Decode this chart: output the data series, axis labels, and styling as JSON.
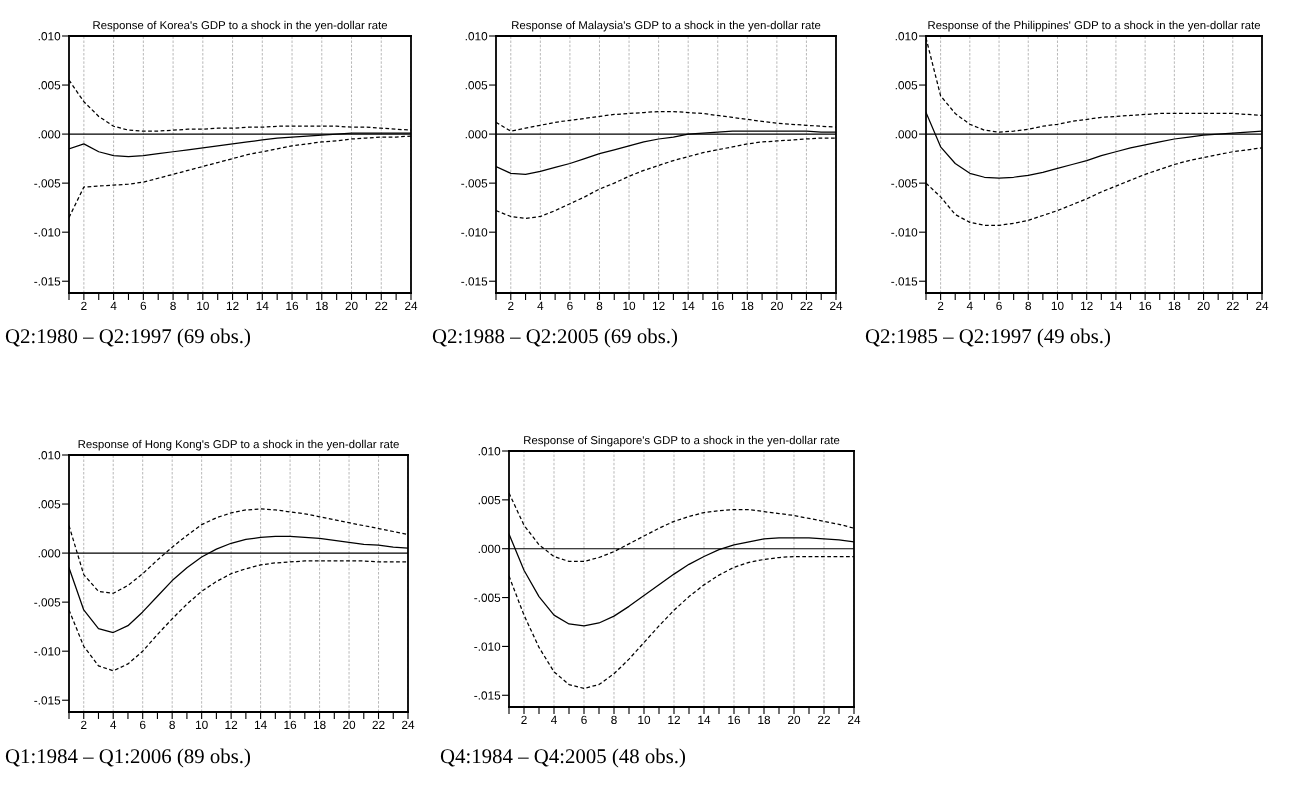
{
  "chart_data": [
    {
      "type": "line",
      "title": "Response of Korea's GDP to a shock in the yen-dollar rate",
      "annotations": [
        "Q2:1980 – Q2:1997 (69 obs.)"
      ],
      "x": [
        1,
        2,
        3,
        4,
        5,
        6,
        7,
        8,
        9,
        10,
        11,
        12,
        13,
        14,
        15,
        16,
        17,
        18,
        19,
        20,
        21,
        22,
        23,
        24
      ],
      "series": [
        {
          "color": "#000000",
          "line_style": "solid",
          "values": [
            -0.0015,
            -0.001,
            -0.0018,
            -0.0022,
            -0.0023,
            -0.0022,
            -0.002,
            -0.0018,
            -0.0016,
            -0.0014,
            -0.0012,
            -0.001,
            -0.0008,
            -0.0006,
            -0.0004,
            -0.0003,
            -0.0002,
            -0.0001,
            0,
            0.0001,
            0.0001,
            0.0001,
            0.0001,
            0.0001
          ]
        },
        {
          "color": "#000000",
          "line_style": "dashed",
          "values": [
            0.0055,
            0.0033,
            0.0018,
            0.0008,
            0.0004,
            0.0003,
            0.0003,
            0.0004,
            0.0005,
            0.0005,
            0.0006,
            0.0006,
            0.0007,
            0.0007,
            0.0008,
            0.0008,
            0.0008,
            0.0008,
            0.0008,
            0.0007,
            0.0007,
            0.0006,
            0.0005,
            0.0004
          ]
        },
        {
          "color": "#000000",
          "line_style": "dashed",
          "values": [
            -0.0085,
            -0.0054,
            -0.0053,
            -0.0052,
            -0.0051,
            -0.0049,
            -0.0045,
            -0.0041,
            -0.0037,
            -0.0033,
            -0.0029,
            -0.0025,
            -0.0021,
            -0.0018,
            -0.0015,
            -0.0012,
            -0.001,
            -0.0008,
            -0.0007,
            -0.0005,
            -0.0004,
            -0.0003,
            -0.0003,
            -0.0002
          ]
        }
      ],
      "xlim": [
        1,
        24
      ],
      "ylim": [
        -0.0162,
        0.01
      ],
      "xticks": [
        {
          "value": 1,
          "label": null
        },
        2,
        {
          "value": 3,
          "label": null
        },
        4,
        {
          "value": 5,
          "label": null
        },
        6,
        {
          "value": 7,
          "label": null
        },
        8,
        {
          "value": 9,
          "label": null
        },
        10,
        {
          "value": 11,
          "label": null
        },
        12,
        {
          "value": 13,
          "label": null
        },
        14,
        {
          "value": 15,
          "label": null
        },
        16,
        {
          "value": 17,
          "label": null
        },
        18,
        {
          "value": 19,
          "label": null
        },
        20,
        {
          "value": 21,
          "label": null
        },
        22,
        {
          "value": 23,
          "label": null
        },
        24
      ],
      "yticks": [
        {
          "value": -0.015,
          "label": "-.015"
        },
        {
          "value": -0.01,
          "label": "-.010"
        },
        {
          "value": -0.005,
          "label": "-.005"
        },
        {
          "value": 0,
          "label": ".000"
        },
        {
          "value": 0.005,
          "label": ".005"
        },
        {
          "value": 0.01,
          "label": ".010"
        }
      ],
      "ref_lines": [
        {
          "axis": "y",
          "value": 0,
          "color": "#000000",
          "line_style": "solid"
        }
      ],
      "grid": "x",
      "legend": false
    },
    {
      "type": "line",
      "title": "Response of Malaysia's GDP to a shock in the yen-dollar rate",
      "annotations": [
        "Q2:1988 – Q2:2005 (69 obs.)"
      ],
      "x": [
        1,
        2,
        3,
        4,
        5,
        6,
        7,
        8,
        9,
        10,
        11,
        12,
        13,
        14,
        15,
        16,
        17,
        18,
        19,
        20,
        21,
        22,
        23,
        24
      ],
      "series": [
        {
          "color": "#000000",
          "line_style": "solid",
          "values": [
            -0.0033,
            -0.004,
            -0.0041,
            -0.0038,
            -0.0034,
            -0.003,
            -0.0025,
            -0.002,
            -0.0016,
            -0.0012,
            -0.0008,
            -0.0005,
            -0.0003,
            0,
            0.0001,
            0.0002,
            0.0003,
            0.0003,
            0.0003,
            0.0003,
            0.0003,
            0.0003,
            0.0002,
            0.0002
          ]
        },
        {
          "color": "#000000",
          "line_style": "dashed",
          "values": [
            0.0012,
            0.0003,
            0.0006,
            0.0009,
            0.0012,
            0.0014,
            0.0016,
            0.0018,
            0.002,
            0.0021,
            0.0022,
            0.0023,
            0.0023,
            0.0022,
            0.0021,
            0.0019,
            0.0017,
            0.0015,
            0.0013,
            0.0011,
            0.001,
            0.0009,
            0.0008,
            0.0007
          ]
        },
        {
          "color": "#000000",
          "line_style": "dashed",
          "values": [
            -0.0078,
            -0.0084,
            -0.0086,
            -0.0084,
            -0.0078,
            -0.0071,
            -0.0064,
            -0.0056,
            -0.005,
            -0.0043,
            -0.0037,
            -0.0032,
            -0.0027,
            -0.0023,
            -0.0019,
            -0.0016,
            -0.0013,
            -0.001,
            -0.0008,
            -0.0007,
            -0.0006,
            -0.0005,
            -0.0004,
            -0.0004
          ]
        }
      ],
      "xlim": [
        1,
        24
      ],
      "ylim": [
        -0.0162,
        0.01
      ],
      "xticks": [
        {
          "value": 1,
          "label": null
        },
        2,
        {
          "value": 3,
          "label": null
        },
        4,
        {
          "value": 5,
          "label": null
        },
        6,
        {
          "value": 7,
          "label": null
        },
        8,
        {
          "value": 9,
          "label": null
        },
        10,
        {
          "value": 11,
          "label": null
        },
        12,
        {
          "value": 13,
          "label": null
        },
        14,
        {
          "value": 15,
          "label": null
        },
        16,
        {
          "value": 17,
          "label": null
        },
        18,
        {
          "value": 19,
          "label": null
        },
        20,
        {
          "value": 21,
          "label": null
        },
        22,
        {
          "value": 23,
          "label": null
        },
        24
      ],
      "yticks": [
        {
          "value": -0.015,
          "label": "-.015"
        },
        {
          "value": -0.01,
          "label": "-.010"
        },
        {
          "value": -0.005,
          "label": "-.005"
        },
        {
          "value": 0,
          "label": ".000"
        },
        {
          "value": 0.005,
          "label": ".005"
        },
        {
          "value": 0.01,
          "label": ".010"
        }
      ],
      "ref_lines": [
        {
          "axis": "y",
          "value": 0,
          "color": "#000000",
          "line_style": "solid"
        }
      ],
      "grid": "x",
      "legend": false
    },
    {
      "type": "line",
      "title": "Response of the Philippines' GDP to a shock in the yen-dollar rate",
      "annotations": [
        "Q2:1985 – Q2:1997 (49 obs.)"
      ],
      "x": [
        1,
        2,
        3,
        4,
        5,
        6,
        7,
        8,
        9,
        10,
        11,
        12,
        13,
        14,
        15,
        16,
        17,
        18,
        19,
        20,
        21,
        22,
        23,
        24
      ],
      "series": [
        {
          "color": "#000000",
          "line_style": "solid",
          "values": [
            0.0022,
            -0.0013,
            -0.003,
            -0.004,
            -0.0044,
            -0.0045,
            -0.0044,
            -0.0042,
            -0.0039,
            -0.0035,
            -0.0031,
            -0.0027,
            -0.0022,
            -0.0018,
            -0.0014,
            -0.0011,
            -0.0008,
            -0.0005,
            -0.0003,
            -0.0001,
            0,
            0.0001,
            0.0002,
            0.0003
          ]
        },
        {
          "color": "#000000",
          "line_style": "dashed",
          "values": [
            0.0098,
            0.0039,
            0.0021,
            0.001,
            0.0004,
            0.0002,
            0.0003,
            0.0005,
            0.0008,
            0.001,
            0.0013,
            0.0015,
            0.0017,
            0.0018,
            0.0019,
            0.002,
            0.0021,
            0.0021,
            0.0021,
            0.0021,
            0.0021,
            0.0021,
            0.002,
            0.0019
          ]
        },
        {
          "color": "#000000",
          "line_style": "dashed",
          "values": [
            -0.005,
            -0.0064,
            -0.0082,
            -0.009,
            -0.0093,
            -0.0093,
            -0.0091,
            -0.0088,
            -0.0083,
            -0.0078,
            -0.0072,
            -0.0066,
            -0.0059,
            -0.0053,
            -0.0047,
            -0.0041,
            -0.0036,
            -0.0031,
            -0.0027,
            -0.0024,
            -0.0021,
            -0.0018,
            -0.0016,
            -0.0014
          ]
        }
      ],
      "xlim": [
        1,
        24
      ],
      "ylim": [
        -0.0162,
        0.01
      ],
      "xticks": [
        {
          "value": 1,
          "label": null
        },
        2,
        {
          "value": 3,
          "label": null
        },
        4,
        {
          "value": 5,
          "label": null
        },
        6,
        {
          "value": 7,
          "label": null
        },
        8,
        {
          "value": 9,
          "label": null
        },
        10,
        {
          "value": 11,
          "label": null
        },
        12,
        {
          "value": 13,
          "label": null
        },
        14,
        {
          "value": 15,
          "label": null
        },
        16,
        {
          "value": 17,
          "label": null
        },
        18,
        {
          "value": 19,
          "label": null
        },
        20,
        {
          "value": 21,
          "label": null
        },
        22,
        {
          "value": 23,
          "label": null
        },
        24
      ],
      "yticks": [
        {
          "value": -0.015,
          "label": "-.015"
        },
        {
          "value": -0.01,
          "label": "-.010"
        },
        {
          "value": -0.005,
          "label": "-.005"
        },
        {
          "value": 0,
          "label": ".000"
        },
        {
          "value": 0.005,
          "label": ".005"
        },
        {
          "value": 0.01,
          "label": ".010"
        }
      ],
      "ref_lines": [
        {
          "axis": "y",
          "value": 0,
          "color": "#000000",
          "line_style": "solid"
        }
      ],
      "grid": "x",
      "legend": false
    },
    {
      "type": "line",
      "title": "Response of Hong Kong's GDP to a shock in the yen-dollar rate",
      "annotations": [
        "Q1:1984 – Q1:2006 (89 obs.)"
      ],
      "x": [
        1,
        2,
        3,
        4,
        5,
        6,
        7,
        8,
        9,
        10,
        11,
        12,
        13,
        14,
        15,
        16,
        17,
        18,
        19,
        20,
        21,
        22,
        23,
        24
      ],
      "series": [
        {
          "color": "#000000",
          "line_style": "solid",
          "values": [
            -0.0015,
            -0.0058,
            -0.0077,
            -0.0081,
            -0.0074,
            -0.006,
            -0.0044,
            -0.0028,
            -0.0015,
            -0.0004,
            0.0004,
            0.001,
            0.0014,
            0.0016,
            0.0017,
            0.0017,
            0.0016,
            0.0015,
            0.0013,
            0.0011,
            0.0009,
            0.0008,
            0.0006,
            0.0005
          ]
        },
        {
          "color": "#000000",
          "line_style": "dashed",
          "values": [
            0.0028,
            -0.0022,
            -0.0039,
            -0.0041,
            -0.0033,
            -0.0021,
            -0.0007,
            0.0006,
            0.0018,
            0.0029,
            0.0036,
            0.0041,
            0.0044,
            0.0045,
            0.0044,
            0.0042,
            0.004,
            0.0037,
            0.0034,
            0.0031,
            0.0028,
            0.0025,
            0.0022,
            0.0019
          ]
        },
        {
          "color": "#000000",
          "line_style": "dashed",
          "values": [
            -0.0058,
            -0.0095,
            -0.0115,
            -0.012,
            -0.0113,
            -0.01,
            -0.0083,
            -0.0067,
            -0.0052,
            -0.0039,
            -0.0029,
            -0.0021,
            -0.0016,
            -0.0012,
            -0.001,
            -0.0009,
            -0.0008,
            -0.0008,
            -0.0008,
            -0.0008,
            -0.0008,
            -0.0009,
            -0.0009,
            -0.0009
          ]
        }
      ],
      "xlim": [
        1,
        24
      ],
      "ylim": [
        -0.0162,
        0.01
      ],
      "xticks": [
        {
          "value": 1,
          "label": null
        },
        2,
        {
          "value": 3,
          "label": null
        },
        4,
        {
          "value": 5,
          "label": null
        },
        6,
        {
          "value": 7,
          "label": null
        },
        8,
        {
          "value": 9,
          "label": null
        },
        10,
        {
          "value": 11,
          "label": null
        },
        12,
        {
          "value": 13,
          "label": null
        },
        14,
        {
          "value": 15,
          "label": null
        },
        16,
        {
          "value": 17,
          "label": null
        },
        18,
        {
          "value": 19,
          "label": null
        },
        20,
        {
          "value": 21,
          "label": null
        },
        22,
        {
          "value": 23,
          "label": null
        },
        24
      ],
      "yticks": [
        {
          "value": -0.015,
          "label": "-.015"
        },
        {
          "value": -0.01,
          "label": "-.010"
        },
        {
          "value": -0.005,
          "label": "-.005"
        },
        {
          "value": 0,
          "label": ".000"
        },
        {
          "value": 0.005,
          "label": ".005"
        },
        {
          "value": 0.01,
          "label": ".010"
        }
      ],
      "ref_lines": [
        {
          "axis": "y",
          "value": 0,
          "color": "#000000",
          "line_style": "solid"
        }
      ],
      "grid": "x",
      "legend": false
    },
    {
      "type": "line",
      "title": "Response of Singapore's GDP to a shock in the yen-dollar rate",
      "annotations": [
        "Q4:1984 – Q4:2005 (48 obs.)"
      ],
      "x": [
        1,
        2,
        3,
        4,
        5,
        6,
        7,
        8,
        9,
        10,
        11,
        12,
        13,
        14,
        15,
        16,
        17,
        18,
        19,
        20,
        21,
        22,
        23,
        24
      ],
      "series": [
        {
          "color": "#000000",
          "line_style": "solid",
          "values": [
            0.0015,
            -0.0022,
            -0.0049,
            -0.0068,
            -0.0077,
            -0.0079,
            -0.0076,
            -0.0069,
            -0.0059,
            -0.0048,
            -0.0037,
            -0.0026,
            -0.0016,
            -0.0008,
            -0.0001,
            0.0004,
            0.0007,
            0.001,
            0.0011,
            0.0011,
            0.0011,
            0.001,
            0.0009,
            0.0007
          ]
        },
        {
          "color": "#000000",
          "line_style": "dashed",
          "values": [
            0.0057,
            0.0024,
            0.0004,
            -0.0008,
            -0.0013,
            -0.0013,
            -0.0009,
            -0.0003,
            0.0005,
            0.0013,
            0.0021,
            0.0028,
            0.0033,
            0.0037,
            0.0039,
            0.004,
            0.004,
            0.0038,
            0.0036,
            0.0034,
            0.0031,
            0.0028,
            0.0025,
            0.0021
          ]
        },
        {
          "color": "#000000",
          "line_style": "dashed",
          "values": [
            -0.0028,
            -0.0068,
            -0.0101,
            -0.0126,
            -0.0139,
            -0.0143,
            -0.0139,
            -0.0128,
            -0.0113,
            -0.0096,
            -0.0079,
            -0.0063,
            -0.0049,
            -0.0037,
            -0.0027,
            -0.0019,
            -0.0014,
            -0.0011,
            -0.0009,
            -0.0008,
            -0.0008,
            -0.0008,
            -0.0008,
            -0.0008
          ]
        }
      ],
      "xlim": [
        1,
        24
      ],
      "ylim": [
        -0.0162,
        0.01
      ],
      "xticks": [
        {
          "value": 1,
          "label": null
        },
        2,
        {
          "value": 3,
          "label": null
        },
        4,
        {
          "value": 5,
          "label": null
        },
        6,
        {
          "value": 7,
          "label": null
        },
        8,
        {
          "value": 9,
          "label": null
        },
        10,
        {
          "value": 11,
          "label": null
        },
        12,
        {
          "value": 13,
          "label": null
        },
        14,
        {
          "value": 15,
          "label": null
        },
        16,
        {
          "value": 17,
          "label": null
        },
        18,
        {
          "value": 19,
          "label": null
        },
        20,
        {
          "value": 21,
          "label": null
        },
        22,
        {
          "value": 23,
          "label": null
        },
        24
      ],
      "yticks": [
        {
          "value": -0.015,
          "label": "-.015"
        },
        {
          "value": -0.01,
          "label": "-.010"
        },
        {
          "value": -0.005,
          "label": "-.005"
        },
        {
          "value": 0,
          "label": ".000"
        },
        {
          "value": 0.005,
          "label": ".005"
        },
        {
          "value": 0.01,
          "label": ".010"
        }
      ],
      "ref_lines": [
        {
          "axis": "y",
          "value": 0,
          "color": "#000000",
          "line_style": "solid"
        }
      ],
      "grid": "x",
      "legend": false
    }
  ]
}
